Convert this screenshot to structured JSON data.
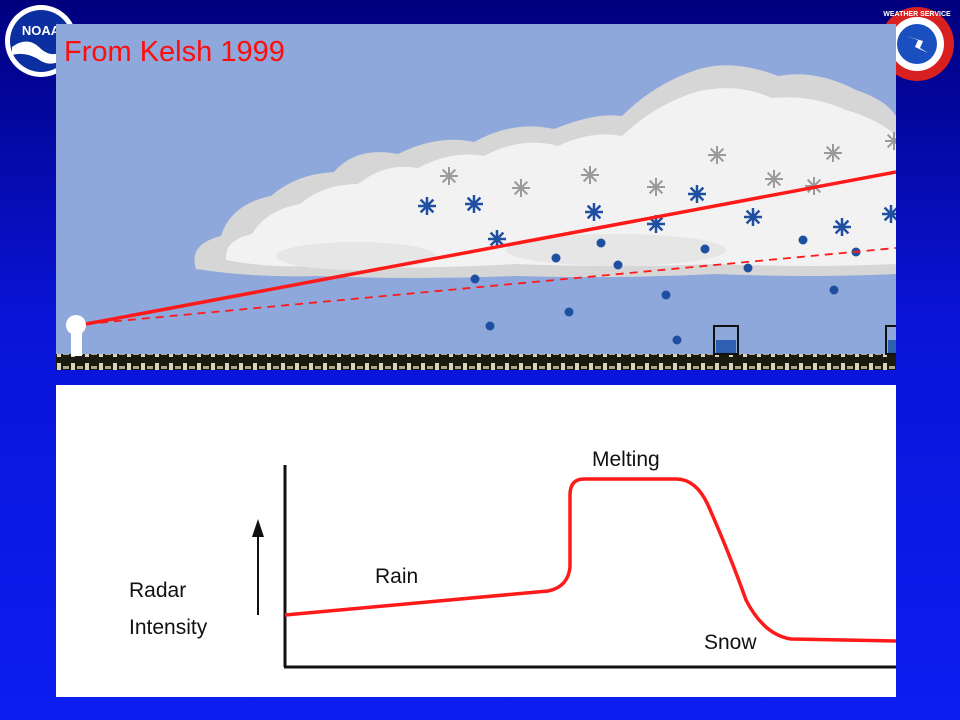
{
  "credit": "From Kelsh 1999",
  "graph": {
    "ylabel_line1": "Radar",
    "ylabel_line2": "Intensity",
    "rain_label": "Rain",
    "melting_label": "Melting",
    "snow_label": "Snow"
  },
  "logos": {
    "left_text": "NOAA",
    "right_text": "WEATHER SERVICE"
  },
  "colors": {
    "beam": "#ff1a1a",
    "sky": "#8ea8dc",
    "background_top": "#00007e",
    "background_bottom": "#0b1ef0",
    "precip": "#1f4fa0"
  }
}
